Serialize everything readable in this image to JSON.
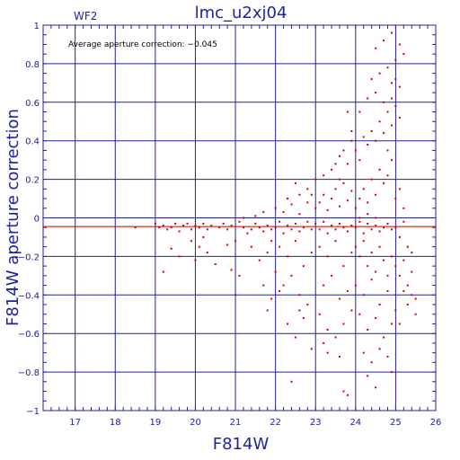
{
  "chart_data": {
    "type": "scatter",
    "title": "lmc_u2xj04",
    "panel_label": "WF2",
    "annotation": "Average aperture correction: −0.045",
    "xlabel": "F814W",
    "ylabel": "F814W aperture correction",
    "xlim": [
      16.2,
      26.0
    ],
    "ylim": [
      -1.0,
      1.0
    ],
    "x_ticks": [
      17,
      18,
      19,
      20,
      21,
      22,
      23,
      24,
      25,
      26
    ],
    "y_ticks": [
      -1,
      -0.8,
      -0.6,
      -0.4,
      -0.2,
      0,
      0.2,
      0.4,
      0.6,
      0.8,
      1
    ],
    "x_tick_labels": [
      "17",
      "18",
      "19",
      "20",
      "21",
      "22",
      "23",
      "24",
      "25",
      "26"
    ],
    "y_tick_labels": [
      "−1",
      "−0.8",
      "−0.6",
      "−0.4",
      "−0.2",
      "0",
      "0.2",
      "0.4",
      "0.6",
      "0.8",
      "1"
    ],
    "grid": true,
    "average_line": -0.045,
    "colors": {
      "axes": "#2020a0",
      "points": "#d00000",
      "title": "#2020a0"
    },
    "series": [
      {
        "points": [
          [
            18.5,
            -0.05
          ],
          [
            19.0,
            -0.03
          ],
          [
            19.1,
            -0.05
          ],
          [
            19.2,
            -0.04
          ],
          [
            19.3,
            -0.06
          ],
          [
            19.4,
            -0.05
          ],
          [
            19.5,
            -0.03
          ],
          [
            19.6,
            -0.07
          ],
          [
            19.7,
            -0.04
          ],
          [
            19.8,
            -0.03
          ],
          [
            19.9,
            -0.06
          ],
          [
            20.0,
            -0.04
          ],
          [
            20.1,
            -0.05
          ],
          [
            20.2,
            -0.03
          ],
          [
            20.3,
            -0.06
          ],
          [
            20.4,
            -0.04
          ],
          [
            20.6,
            -0.05
          ],
          [
            20.7,
            -0.03
          ],
          [
            20.8,
            -0.06
          ],
          [
            20.9,
            -0.04
          ],
          [
            19.2,
            -0.28
          ],
          [
            19.6,
            -0.2
          ],
          [
            19.9,
            -0.12
          ],
          [
            20.1,
            -0.15
          ],
          [
            20.3,
            -0.18
          ],
          [
            20.5,
            -0.24
          ],
          [
            20.8,
            -0.14
          ],
          [
            20.0,
            -0.22
          ],
          [
            20.2,
            -0.1
          ],
          [
            19.4,
            -0.16
          ],
          [
            20.9,
            -0.27
          ],
          [
            21.0,
            -0.4
          ],
          [
            21.1,
            -0.3
          ],
          [
            21.0,
            -0.12
          ],
          [
            21.1,
            -0.02
          ],
          [
            21.2,
            -0.05
          ],
          [
            21.3,
            -0.08
          ],
          [
            21.4,
            -0.06
          ],
          [
            21.5,
            -0.03
          ],
          [
            21.6,
            -0.05
          ],
          [
            21.7,
            -0.07
          ],
          [
            21.8,
            -0.04
          ],
          [
            21.9,
            -0.06
          ],
          [
            21.2,
            0.0
          ],
          [
            21.4,
            -0.15
          ],
          [
            21.6,
            -0.22
          ],
          [
            21.8,
            -0.18
          ],
          [
            21.9,
            -0.12
          ],
          [
            21.5,
            0.01
          ],
          [
            21.7,
            0.03
          ],
          [
            21.8,
            -0.48
          ],
          [
            21.9,
            -0.42
          ],
          [
            21.7,
            -0.35
          ],
          [
            22.0,
            -0.05
          ],
          [
            22.1,
            -0.02
          ],
          [
            22.2,
            -0.08
          ],
          [
            22.3,
            -0.04
          ],
          [
            22.4,
            -0.06
          ],
          [
            22.5,
            -0.03
          ],
          [
            22.6,
            -0.07
          ],
          [
            22.7,
            -0.05
          ],
          [
            22.8,
            -0.02
          ],
          [
            22.9,
            -0.06
          ],
          [
            22.0,
            0.05
          ],
          [
            22.2,
            0.03
          ],
          [
            22.4,
            0.07
          ],
          [
            22.6,
            0.02
          ],
          [
            22.8,
            0.08
          ],
          [
            22.1,
            -0.15
          ],
          [
            22.3,
            -0.2
          ],
          [
            22.5,
            -0.12
          ],
          [
            22.7,
            -0.25
          ],
          [
            22.9,
            -0.18
          ],
          [
            22.2,
            -0.35
          ],
          [
            22.4,
            -0.3
          ],
          [
            22.6,
            -0.4
          ],
          [
            22.8,
            -0.45
          ],
          [
            22.3,
            -0.55
          ],
          [
            22.5,
            -0.62
          ],
          [
            22.7,
            -0.52
          ],
          [
            22.9,
            -0.68
          ],
          [
            22.4,
            -0.85
          ],
          [
            22.6,
            -0.48
          ],
          [
            22.0,
            -0.28
          ],
          [
            22.1,
            -0.38
          ],
          [
            22.6,
            0.12
          ],
          [
            22.8,
            0.15
          ],
          [
            22.3,
            0.1
          ],
          [
            22.5,
            0.18
          ],
          [
            22.9,
            0.12
          ],
          [
            23.0,
            -0.03
          ],
          [
            23.1,
            -0.06
          ],
          [
            23.2,
            -0.02
          ],
          [
            23.3,
            -0.08
          ],
          [
            23.4,
            -0.04
          ],
          [
            23.5,
            -0.06
          ],
          [
            23.6,
            -0.03
          ],
          [
            23.7,
            -0.05
          ],
          [
            23.8,
            -0.07
          ],
          [
            23.9,
            -0.04
          ],
          [
            23.0,
            0.05
          ],
          [
            23.1,
            0.08
          ],
          [
            23.2,
            0.12
          ],
          [
            23.3,
            0.04
          ],
          [
            23.4,
            0.1
          ],
          [
            23.5,
            0.15
          ],
          [
            23.6,
            0.06
          ],
          [
            23.7,
            0.18
          ],
          [
            23.8,
            0.09
          ],
          [
            23.9,
            0.14
          ],
          [
            23.0,
            0.2
          ],
          [
            23.2,
            0.22
          ],
          [
            23.4,
            0.25
          ],
          [
            23.6,
            0.2
          ],
          [
            23.8,
            0.28
          ],
          [
            23.1,
            -0.15
          ],
          [
            23.3,
            -0.2
          ],
          [
            23.5,
            -0.12
          ],
          [
            23.7,
            -0.25
          ],
          [
            23.9,
            -0.18
          ],
          [
            23.2,
            -0.35
          ],
          [
            23.4,
            -0.3
          ],
          [
            23.6,
            -0.42
          ],
          [
            23.8,
            -0.38
          ],
          [
            23.1,
            -0.5
          ],
          [
            23.3,
            -0.58
          ],
          [
            23.5,
            -0.62
          ],
          [
            23.7,
            -0.55
          ],
          [
            23.9,
            -0.48
          ],
          [
            23.3,
            -0.7
          ],
          [
            23.6,
            -0.72
          ],
          [
            23.2,
            -0.65
          ],
          [
            23.7,
            -0.9
          ],
          [
            23.8,
            -0.92
          ],
          [
            23.9,
            0.4
          ],
          [
            23.7,
            0.35
          ],
          [
            23.8,
            0.55
          ],
          [
            23.9,
            0.45
          ],
          [
            23.6,
            0.32
          ],
          [
            23.5,
            0.28
          ],
          [
            24.0,
            -0.05
          ],
          [
            24.1,
            -0.02
          ],
          [
            24.2,
            -0.08
          ],
          [
            24.3,
            -0.03
          ],
          [
            24.4,
            -0.06
          ],
          [
            24.5,
            -0.04
          ],
          [
            24.6,
            -0.07
          ],
          [
            24.7,
            -0.05
          ],
          [
            24.8,
            -0.03
          ],
          [
            24.9,
            -0.06
          ],
          [
            24.0,
            0.05
          ],
          [
            24.1,
            0.1
          ],
          [
            24.2,
            0.15
          ],
          [
            24.3,
            0.08
          ],
          [
            24.4,
            0.2
          ],
          [
            24.5,
            0.12
          ],
          [
            24.6,
            0.25
          ],
          [
            24.7,
            0.18
          ],
          [
            24.8,
            0.22
          ],
          [
            24.9,
            0.3
          ],
          [
            24.0,
            0.35
          ],
          [
            24.1,
            0.3
          ],
          [
            24.2,
            0.42
          ],
          [
            24.3,
            0.38
          ],
          [
            24.4,
            0.45
          ],
          [
            24.5,
            0.4
          ],
          [
            24.6,
            0.5
          ],
          [
            24.7,
            0.44
          ],
          [
            24.8,
            0.55
          ],
          [
            24.9,
            0.48
          ],
          [
            24.1,
            0.55
          ],
          [
            24.3,
            0.62
          ],
          [
            24.5,
            0.65
          ],
          [
            24.7,
            0.6
          ],
          [
            24.9,
            0.7
          ],
          [
            24.4,
            0.72
          ],
          [
            24.6,
            0.75
          ],
          [
            24.8,
            0.78
          ],
          [
            24.5,
            0.88
          ],
          [
            24.7,
            0.92
          ],
          [
            24.9,
            0.96
          ],
          [
            25.0,
            0.82
          ],
          [
            25.1,
            0.9
          ],
          [
            25.2,
            0.85
          ],
          [
            25.0,
            0.72
          ],
          [
            25.1,
            0.68
          ],
          [
            24.9,
            0.62
          ],
          [
            25.0,
            0.58
          ],
          [
            25.1,
            0.52
          ],
          [
            24.8,
            0.35
          ],
          [
            24.0,
            -0.15
          ],
          [
            24.1,
            -0.2
          ],
          [
            24.2,
            -0.12
          ],
          [
            24.3,
            -0.25
          ],
          [
            24.4,
            -0.18
          ],
          [
            24.5,
            -0.28
          ],
          [
            24.6,
            -0.15
          ],
          [
            24.7,
            -0.22
          ],
          [
            24.8,
            -0.3
          ],
          [
            24.9,
            -0.2
          ],
          [
            24.0,
            -0.35
          ],
          [
            24.2,
            -0.4
          ],
          [
            24.4,
            -0.32
          ],
          [
            24.6,
            -0.45
          ],
          [
            24.8,
            -0.38
          ],
          [
            24.1,
            -0.5
          ],
          [
            24.3,
            -0.58
          ],
          [
            24.5,
            -0.52
          ],
          [
            24.7,
            -0.62
          ],
          [
            24.9,
            -0.55
          ],
          [
            24.2,
            -0.7
          ],
          [
            24.4,
            -0.75
          ],
          [
            24.6,
            -0.68
          ],
          [
            24.8,
            -0.72
          ],
          [
            24.3,
            -0.82
          ],
          [
            24.5,
            -0.88
          ],
          [
            24.9,
            -0.8
          ],
          [
            24.1,
            0.0
          ],
          [
            24.3,
            0.02
          ],
          [
            24.5,
            0.0
          ],
          [
            25.0,
            -0.05
          ],
          [
            25.1,
            -0.1
          ],
          [
            25.2,
            -0.02
          ],
          [
            25.3,
            -0.15
          ],
          [
            25.0,
            0.1
          ],
          [
            25.1,
            0.15
          ],
          [
            25.2,
            0.05
          ],
          [
            25.0,
            -0.25
          ],
          [
            25.1,
            -0.3
          ],
          [
            25.2,
            -0.22
          ],
          [
            25.3,
            -0.35
          ],
          [
            25.4,
            -0.4
          ],
          [
            25.5,
            -0.42
          ],
          [
            25.4,
            -0.28
          ],
          [
            25.5,
            -0.5
          ],
          [
            25.3,
            -0.45
          ],
          [
            25.2,
            -0.38
          ],
          [
            25.4,
            -0.18
          ],
          [
            25.0,
            -0.48
          ],
          [
            25.1,
            -0.55
          ]
        ]
      }
    ]
  }
}
